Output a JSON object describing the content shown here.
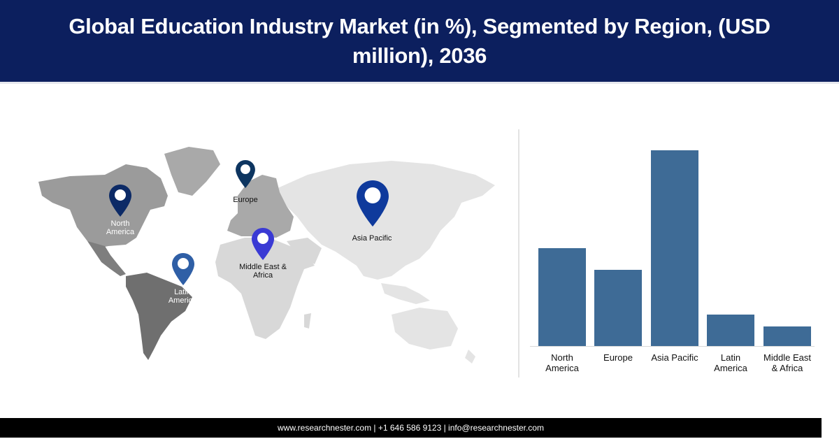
{
  "header": {
    "title": "Global Education Industry Market (in %), Segmented by Region, (USD million), 2036"
  },
  "map": {
    "pins": [
      {
        "region": "North America",
        "label": "North\nAmerica",
        "color": "#0c2a66",
        "label_color": "light"
      },
      {
        "region": "Europe",
        "label": "Europe",
        "color": "#0d3560",
        "label_color": "dark"
      },
      {
        "region": "Asia Pacific",
        "label": "Asia Pacific",
        "color": "#0f3a9c",
        "label_color": "dark"
      },
      {
        "region": "Middle East & Africa",
        "label": "Middle East &\nAfrica",
        "color": "#3a3ad4",
        "label_color": "dark"
      },
      {
        "region": "Latin America",
        "label": "Latin\nAmerica",
        "color": "#2f5fa6",
        "label_color": "light"
      }
    ]
  },
  "chart_data": {
    "type": "bar",
    "title": "Global Education Industry Market (in %), Segmented by Region, (USD million), 2036",
    "categories": [
      "North America",
      "Europe",
      "Asia Pacific",
      "Latin America",
      "Middle East & Africa"
    ],
    "category_labels": [
      "North\nAmerica",
      "Europe",
      "Asia Pacific",
      "Latin\nAmerica",
      "Middle East\n& Africa"
    ],
    "values": [
      50,
      39,
      100,
      16,
      10
    ],
    "value_note": "relative bar heights (no axis shown); Asia Pacific = 100",
    "xlabel": "",
    "ylabel": "",
    "ylim": [
      0,
      100
    ],
    "grid": false,
    "legend": "none",
    "bar_color": "#3e6b96"
  },
  "footer": {
    "text": "www.researchnester.com | +1 646 586 9123  | info@researchnester.com"
  }
}
